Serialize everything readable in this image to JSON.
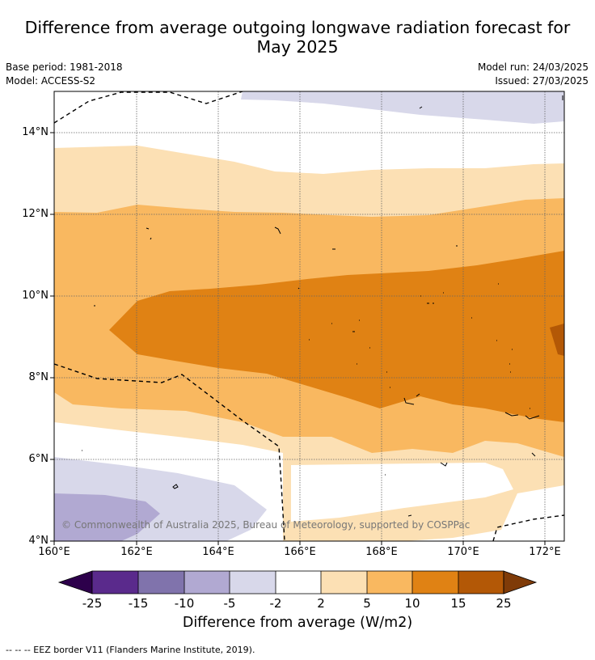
{
  "title_line1": "Difference from average outgoing longwave radiation forecast for",
  "title_line2": "May 2025",
  "meta": {
    "base_period": "Base period: 1981-2018",
    "model": "Model: ACCESS-S2",
    "model_run": "Model run: 24/03/2025",
    "issued": "Issued: 27/03/2025"
  },
  "map": {
    "lat_labels": [
      "14°N",
      "12°N",
      "10°N",
      "8°N",
      "6°N",
      "4°N"
    ],
    "lon_labels": [
      "160°E",
      "162°E",
      "164°E",
      "166°E",
      "168°E",
      "170°E",
      "172°E"
    ],
    "copyright": "© Commonwealth of Australia 2025, Bureau of Meteorology, supported by COSPPac",
    "fill_colors": {
      "neg5_neg2": "#d8d8ea",
      "neg10_neg5": "#b1a9d2",
      "pos2_5": "#fce0b4",
      "pos5_10": "#f9b860",
      "pos10_15": "#e08214",
      "pos15_25": "#b35806"
    }
  },
  "colorbar": {
    "ticks": [
      "-25",
      "-15",
      "-10",
      "-5",
      "-2",
      "2",
      "5",
      "10",
      "15",
      "25"
    ],
    "colors": [
      "#5a2a8c",
      "#8073ac",
      "#b1a9d2",
      "#d8d8ea",
      "#ffffff",
      "#fce0b4",
      "#f9b860",
      "#e08214",
      "#b35806"
    ],
    "under_color": "#2d004b",
    "over_color": "#7f3b08",
    "label": "Difference from average (W/m2)"
  },
  "footnote": "--  --  -- EEZ border V11 (Flanders Marine Institute, 2019)."
}
